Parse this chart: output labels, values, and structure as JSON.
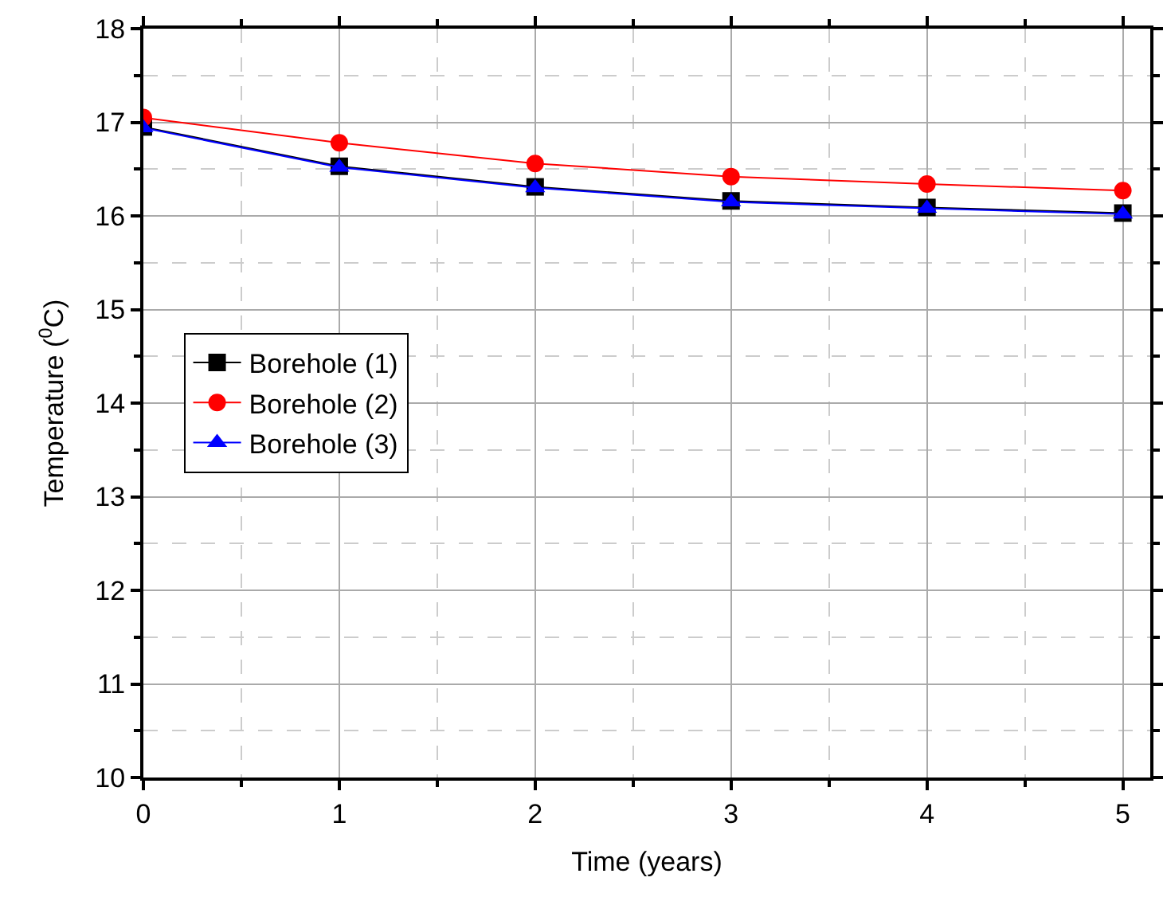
{
  "chart_data": {
    "type": "line",
    "xlabel": "Time (years)",
    "ylabel": "Temperature ($^{0}$C)",
    "x": [
      0,
      1,
      2,
      3,
      4,
      5
    ],
    "series": [
      {
        "name": "Borehole (1)",
        "color": "#000000",
        "marker": "square",
        "values": [
          16.95,
          16.53,
          16.31,
          16.16,
          16.09,
          16.03
        ]
      },
      {
        "name": "Borehole (2)",
        "color": "#ff0000",
        "marker": "circle",
        "values": [
          17.05,
          16.78,
          16.56,
          16.42,
          16.34,
          16.27
        ]
      },
      {
        "name": "Borehole (3)",
        "color": "#0000ff",
        "marker": "triangle",
        "values": [
          16.94,
          16.52,
          16.3,
          16.15,
          16.08,
          16.02
        ]
      }
    ],
    "xlim": [
      0,
      5.14
    ],
    "xticks": [
      0,
      1,
      2,
      3,
      4,
      5
    ],
    "ylim": [
      10,
      18
    ],
    "yticks": [
      10,
      11,
      12,
      13,
      14,
      15,
      16,
      17,
      18
    ],
    "grid": true,
    "legend": "left",
    "line_style": "solid"
  }
}
